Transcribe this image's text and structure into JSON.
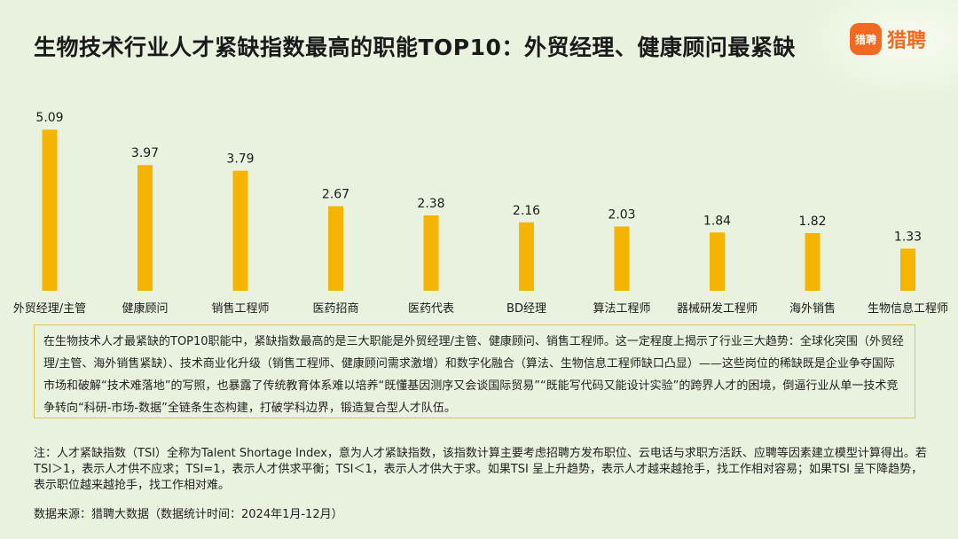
{
  "header": {
    "title": "生物技术行业人才紧缺指数最高的职能TOP10：外贸经理、健康顾问最紧缺",
    "logo_icon_text": "猎聘",
    "logo_text": "猎聘",
    "brand_color": "#f26a21"
  },
  "chart_data": {
    "type": "bar",
    "categories": [
      "外贸经理/主管",
      "健康顾问",
      "销售工程师",
      "医药招商",
      "医药代表",
      "BD经理",
      "算法工程师",
      "器械研发工程师",
      "海外销售",
      "生物信息工程师"
    ],
    "values": [
      5.09,
      3.97,
      3.79,
      2.67,
      2.38,
      2.16,
      2.03,
      1.84,
      1.82,
      1.33
    ],
    "value_labels": [
      "5.09",
      "3.97",
      "3.79",
      "2.67",
      "2.38",
      "2.16",
      "2.03",
      "1.84",
      "1.82",
      "1.33"
    ],
    "bar_color": "#f5b400",
    "ylim": [
      0,
      5.6
    ],
    "grid": false
  },
  "summary": {
    "text": "在生物技术人才最紧缺的TOP10职能中，紧缺指数最高的是三大职能是外贸经理/主管、健康顾问、销售工程师。这一定程度上揭示了行业三大趋势：全球化突围（外贸经理/主管、海外销售紧缺）、技术商业化升级（销售工程师、健康顾问需求激增）和数字化融合（算法、生物信息工程师缺口凸显）——这些岗位的稀缺既是企业争夺国际市场和破解“技术难落地”的写照，也暴露了传统教育体系难以培养“既懂基因测序又会谈国际贸易”“既能写代码又能设计实验”的跨界人才的困境，倒逼行业从单一技术竞争转向“科研-市场-数据”全链条生态构建，打破学科边界，锻造复合型人才队伍。"
  },
  "note": {
    "text": "注：人才紧缺指数（TSI）全称为Talent Shortage Index，意为人才紧缺指数，该指数计算主要考虑招聘方发布职位、云电话与求职方活跃、应聘等因素建立模型计算得出。若TSI＞1，表示人才供不应求；TSI=1，表示人才供求平衡；TSI＜1，表示人才供大于求。如果TSI 呈上升趋势，表示人才越来越抢手，找工作相对容易；如果TSI 呈下降趋势，表示职位越来越抢手，找工作相对难。"
  },
  "source": {
    "text": "数据来源：猎聘大数据（数据统计时间：2024年1月-12月）"
  }
}
